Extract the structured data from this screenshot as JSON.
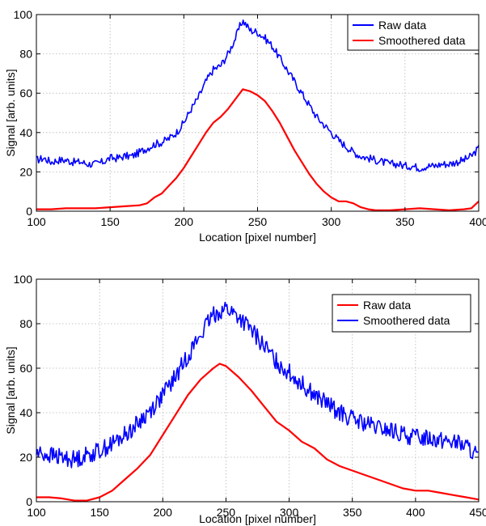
{
  "chart_data": [
    {
      "type": "line",
      "title": "",
      "xlabel": "Location [pixel number]",
      "ylabel": "Signal [arb. units]",
      "xlim": [
        100,
        400
      ],
      "ylim": [
        0,
        100
      ],
      "xticks": [
        100,
        150,
        200,
        250,
        300,
        350,
        400
      ],
      "yticks": [
        0,
        20,
        40,
        60,
        80,
        100
      ],
      "grid": true,
      "legend_position": "top-right",
      "series": [
        {
          "name": "Raw data",
          "color": "#0000ff",
          "x": [
            100,
            105,
            110,
            115,
            120,
            125,
            130,
            135,
            140,
            145,
            150,
            155,
            160,
            165,
            170,
            175,
            180,
            185,
            190,
            195,
            200,
            205,
            210,
            215,
            220,
            225,
            230,
            235,
            238,
            240,
            245,
            250,
            255,
            260,
            265,
            270,
            275,
            280,
            285,
            290,
            295,
            300,
            305,
            310,
            315,
            320,
            325,
            330,
            335,
            340,
            345,
            350,
            355,
            360,
            365,
            370,
            375,
            380,
            385,
            390,
            395,
            400
          ],
          "y": [
            26,
            27,
            25,
            26,
            26,
            25,
            25,
            24,
            24,
            25,
            27,
            27,
            28,
            28,
            30,
            32,
            34,
            35,
            37,
            40,
            45,
            52,
            58,
            66,
            72,
            74,
            80,
            88,
            94,
            97,
            92,
            91,
            88,
            84,
            78,
            72,
            66,
            60,
            54,
            48,
            44,
            40,
            36,
            33,
            30,
            28,
            27,
            26,
            25,
            24,
            24,
            23,
            23,
            22,
            23,
            23,
            24,
            24,
            25,
            26,
            28,
            32
          ],
          "noise": 2
        },
        {
          "name": "Smoothered data",
          "color": "#ff0000",
          "x": [
            100,
            110,
            120,
            130,
            140,
            150,
            160,
            170,
            175,
            180,
            185,
            190,
            195,
            200,
            205,
            210,
            215,
            220,
            225,
            230,
            235,
            240,
            245,
            250,
            255,
            260,
            265,
            270,
            275,
            280,
            285,
            290,
            295,
            300,
            305,
            310,
            315,
            320,
            325,
            330,
            340,
            350,
            360,
            370,
            380,
            390,
            395,
            400
          ],
          "y": [
            1,
            1,
            1.5,
            1.5,
            1.5,
            2,
            2.5,
            3,
            4,
            7,
            9,
            13,
            17,
            22,
            28,
            34,
            40,
            45,
            48,
            52,
            57,
            62,
            61,
            59,
            56,
            51,
            45,
            38,
            31,
            25,
            19,
            14,
            10,
            7,
            5,
            5,
            4,
            2,
            1,
            0.5,
            0.5,
            1,
            1.5,
            1,
            0.5,
            1,
            1.5,
            5
          ],
          "noise": 0
        }
      ]
    },
    {
      "type": "line",
      "title": "",
      "xlabel": "Location [pixel number]",
      "ylabel": "Signal [arb. units]",
      "xlim": [
        100,
        450
      ],
      "ylim": [
        0,
        100
      ],
      "xticks": [
        100,
        150,
        200,
        250,
        300,
        350,
        400,
        450
      ],
      "yticks": [
        0,
        20,
        40,
        60,
        80,
        100
      ],
      "grid": true,
      "legend_position": "top-right",
      "series": [
        {
          "name": "Raw data",
          "color": "#ff0000",
          "x": [
            100,
            110,
            120,
            130,
            140,
            150,
            160,
            170,
            180,
            190,
            200,
            210,
            220,
            230,
            240,
            245,
            250,
            260,
            270,
            280,
            290,
            300,
            310,
            320,
            330,
            340,
            350,
            360,
            370,
            380,
            390,
            400,
            410,
            420,
            430,
            440,
            450
          ],
          "y": [
            2,
            2,
            1.5,
            0.5,
            0.5,
            2,
            5,
            10,
            15,
            21,
            30,
            39,
            48,
            55,
            60,
            62,
            61,
            56,
            50,
            43,
            36,
            32,
            27,
            24,
            19,
            16,
            14,
            12,
            10,
            8,
            6,
            5,
            5,
            4,
            3,
            2,
            1
          ],
          "noise": 0
        },
        {
          "name": "Smoothered data",
          "color": "#0000ff",
          "x": [
            100,
            110,
            120,
            130,
            140,
            150,
            160,
            170,
            180,
            190,
            200,
            210,
            220,
            230,
            240,
            250,
            260,
            270,
            280,
            290,
            300,
            310,
            320,
            330,
            340,
            350,
            360,
            370,
            380,
            390,
            400,
            410,
            420,
            430,
            440,
            450
          ],
          "y": [
            22,
            21,
            20,
            19,
            21,
            23,
            26,
            30,
            35,
            41,
            48,
            56,
            66,
            75,
            84,
            87,
            83,
            77,
            70,
            63,
            58,
            53,
            48,
            44,
            40,
            37,
            35,
            33,
            32,
            30,
            29,
            29,
            28,
            27,
            25,
            20
          ],
          "noise": 4
        }
      ]
    }
  ]
}
